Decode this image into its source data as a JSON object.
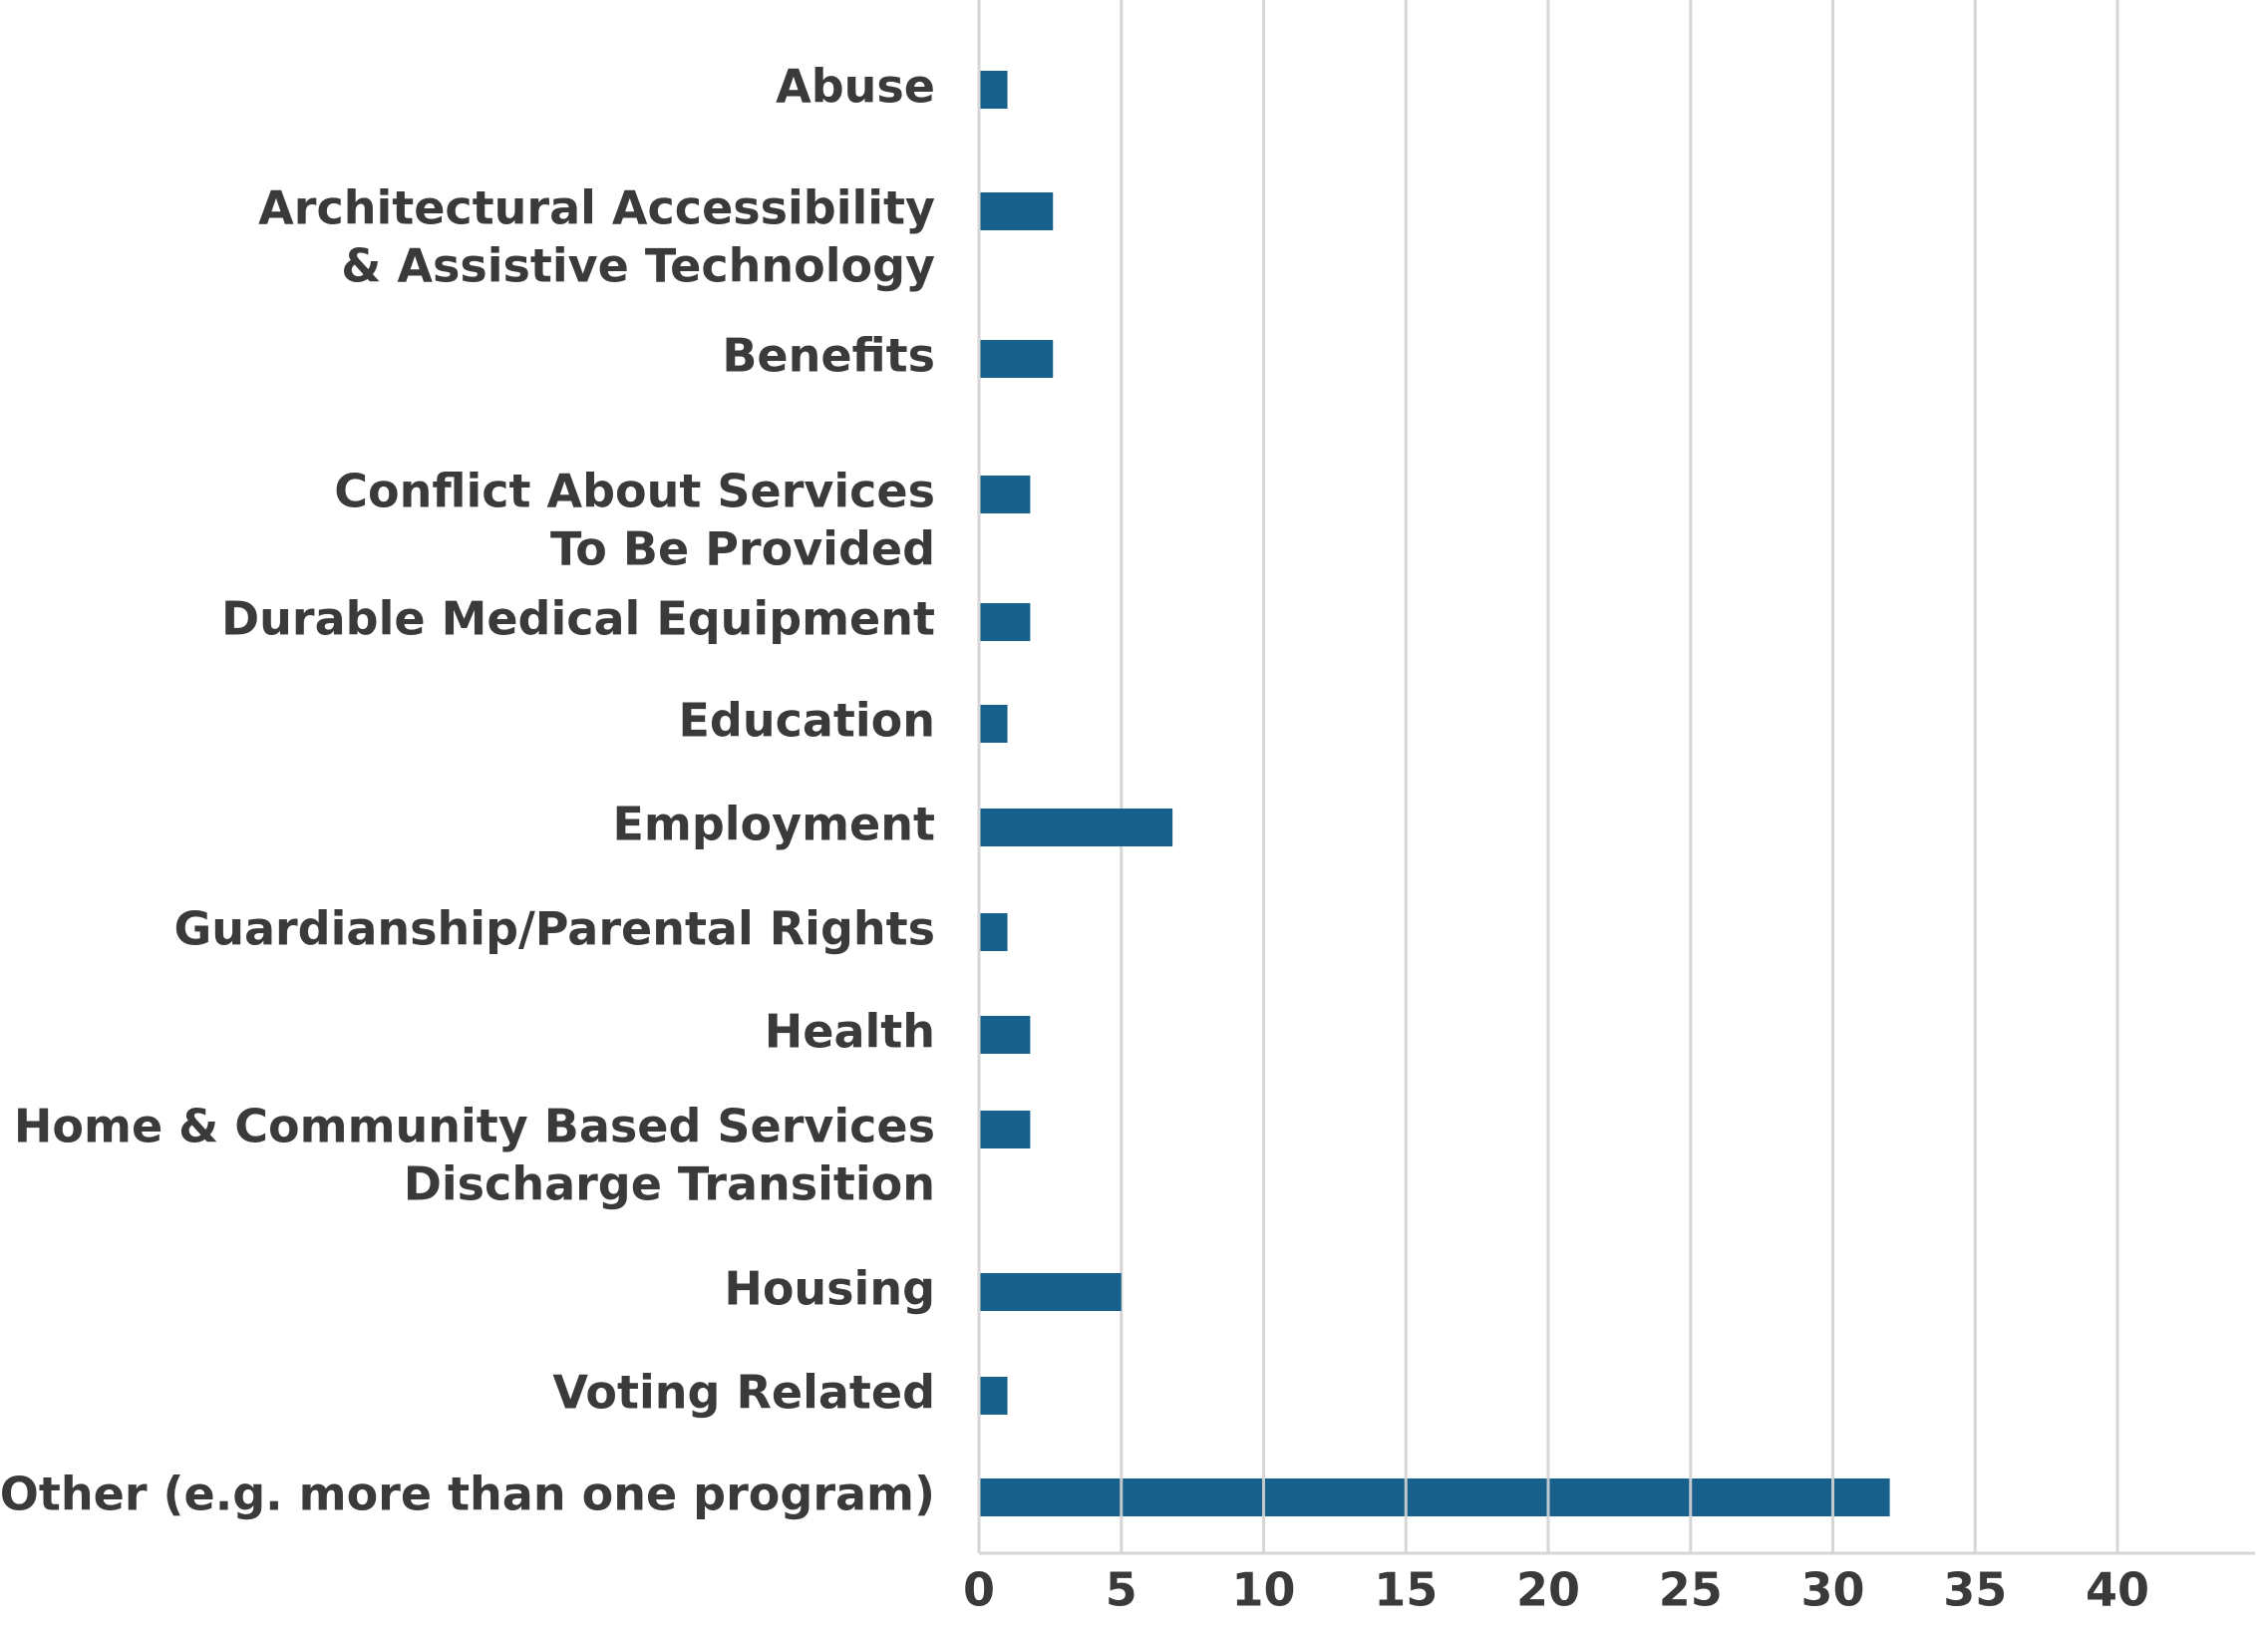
{
  "chart_data": {
    "type": "bar",
    "orientation": "horizontal",
    "title": "",
    "xlabel": "",
    "ylabel": "",
    "xlim": [
      0,
      43
    ],
    "grid": true,
    "legend": "none",
    "bar_color": "#17618C",
    "categories": [
      [
        "Abuse"
      ],
      [
        "Architectural Accessibility",
        "& Assistive Technology"
      ],
      [
        "Benefits"
      ],
      [
        "Conflict About Services",
        "To Be Provided"
      ],
      [
        "Durable Medical Equipment"
      ],
      [
        "Education"
      ],
      [
        "Employment"
      ],
      [
        "Guardianship/Parental Rights"
      ],
      [
        "Health"
      ],
      [
        "Home & Community Based Services",
        "Discharge Transition"
      ],
      [
        "Housing"
      ],
      [
        "Voting Related"
      ],
      [
        "Other (e.g. more than one program)"
      ]
    ],
    "values": [
      1,
      2.6,
      2.6,
      1.8,
      1.8,
      1,
      6.8,
      1,
      1.8,
      1.8,
      5,
      1,
      32
    ],
    "ticks": [
      0,
      5,
      10,
      15,
      20,
      25,
      30,
      35,
      40
    ],
    "tick_labels": [
      "0",
      "5",
      "10",
      "15",
      "20",
      "25",
      "30",
      "35",
      "40"
    ]
  }
}
